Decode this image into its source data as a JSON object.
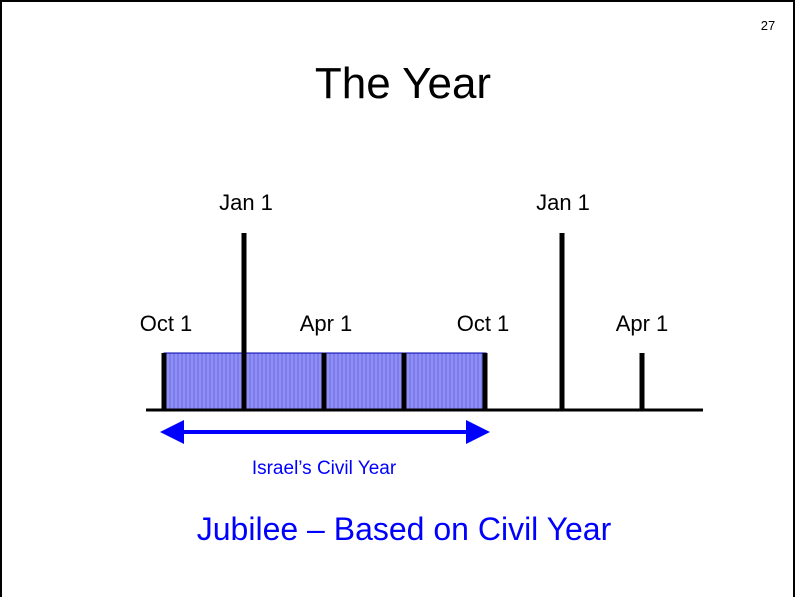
{
  "slide_number": "27",
  "title": "The Year",
  "timeline": {
    "top_labels": [
      "Jan 1",
      "Jan 1"
    ],
    "bottom_labels": [
      "Oct 1",
      "Apr 1",
      "Oct 1",
      "Apr 1"
    ]
  },
  "range_label": "Israel’s Civil Year",
  "caption": "Jubilee – Based on Civil Year"
}
